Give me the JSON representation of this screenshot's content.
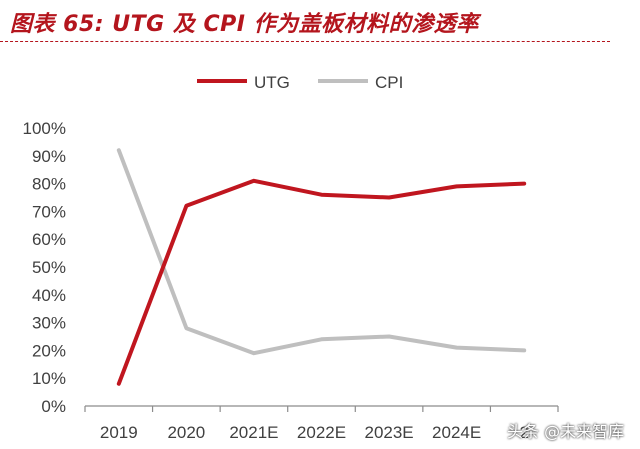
{
  "figure": {
    "title": "图表 65:  UTG 及 CPI 作为盖板材料的渗透率"
  },
  "chart_data": {
    "type": "line",
    "categories": [
      "2019",
      "2020",
      "2021E",
      "2022E",
      "2023E",
      "2024E",
      "2025E"
    ],
    "category_labels_shown": [
      "2019",
      "2020",
      "2021E",
      "2022E",
      "2023E",
      "2024E",
      "2"
    ],
    "series": [
      {
        "name": "UTG",
        "color": "#c0161f",
        "values": [
          8,
          72,
          81,
          76,
          75,
          79,
          80
        ]
      },
      {
        "name": "CPI",
        "color": "#bfbfbf",
        "values": [
          92,
          28,
          19,
          24,
          25,
          21,
          20
        ]
      }
    ],
    "ylim": [
      0,
      100
    ],
    "yticks": [
      "0%",
      "10%",
      "20%",
      "30%",
      "40%",
      "50%",
      "60%",
      "70%",
      "80%",
      "90%",
      "100%"
    ],
    "legend_position": "top",
    "grid": false
  },
  "watermark": "头条 @未来智库"
}
